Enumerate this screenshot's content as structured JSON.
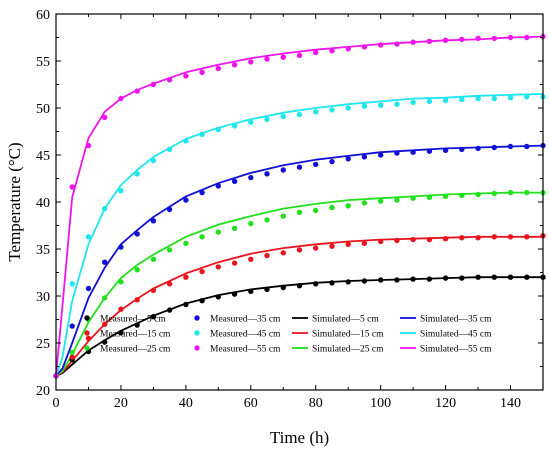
{
  "chart_data": {
    "type": "line",
    "title": "",
    "xlabel": "Time (h)",
    "ylabel": "Temperature (°C)",
    "xlim": [
      0,
      150
    ],
    "ylim": [
      20,
      60
    ],
    "xticks": [
      0,
      20,
      40,
      60,
      80,
      100,
      120,
      140
    ],
    "yticks": [
      20,
      25,
      30,
      35,
      40,
      45,
      50,
      55,
      60
    ],
    "grid": false,
    "legend_position": "bottom-right",
    "colors": {
      "5 cm": "#000000",
      "15 cm": "#e8141d",
      "25 cm": "#21e01c",
      "35 cm": "#1010d8",
      "45 cm": "#1ee6ee",
      "55 cm": "#ee14ee"
    },
    "measured_series": [
      {
        "name": "Measured—5 cm",
        "color": "#000000",
        "x": [
          0,
          5,
          10,
          15,
          20,
          25,
          30,
          35,
          40,
          45,
          50,
          55,
          60,
          65,
          70,
          75,
          80,
          85,
          90,
          95,
          100,
          105,
          110,
          115,
          120,
          125,
          130,
          135,
          140,
          145,
          150
        ],
        "y": [
          21.5,
          23.2,
          24.1,
          25.1,
          26.1,
          26.9,
          27.8,
          28.5,
          29.1,
          29.5,
          29.9,
          30.2,
          30.5,
          30.7,
          30.9,
          31.1,
          31.3,
          31.4,
          31.5,
          31.6,
          31.7,
          31.7,
          31.8,
          31.8,
          31.9,
          31.9,
          32.0,
          32.0,
          32.0,
          32.0,
          32.0
        ]
      },
      {
        "name": "Measured—15 cm",
        "color": "#e8141d",
        "x": [
          0,
          5,
          10,
          15,
          20,
          25,
          30,
          35,
          40,
          45,
          50,
          55,
          60,
          65,
          70,
          75,
          80,
          85,
          90,
          95,
          100,
          105,
          110,
          115,
          120,
          125,
          130,
          135,
          140,
          145,
          150
        ],
        "y": [
          21.5,
          23.5,
          25.5,
          27.0,
          28.6,
          29.6,
          30.6,
          31.3,
          32.0,
          32.6,
          33.1,
          33.5,
          33.9,
          34.3,
          34.6,
          34.9,
          35.1,
          35.3,
          35.5,
          35.6,
          35.8,
          35.9,
          36.0,
          36.0,
          36.1,
          36.2,
          36.2,
          36.3,
          36.3,
          36.3,
          36.4
        ]
      },
      {
        "name": "Measured—25 cm",
        "color": "#21e01c",
        "x": [
          0,
          5,
          10,
          15,
          20,
          25,
          30,
          35,
          40,
          45,
          50,
          55,
          60,
          65,
          70,
          75,
          80,
          85,
          90,
          95,
          100,
          105,
          110,
          115,
          120,
          125,
          130,
          135,
          140,
          145,
          150
        ],
        "y": [
          21.5,
          24.0,
          27.5,
          29.8,
          31.5,
          32.8,
          33.9,
          34.9,
          35.6,
          36.3,
          36.8,
          37.2,
          37.7,
          38.1,
          38.5,
          38.9,
          39.1,
          39.4,
          39.6,
          39.9,
          40.1,
          40.2,
          40.4,
          40.5,
          40.6,
          40.7,
          40.8,
          40.9,
          41.0,
          41.0,
          41.0
        ]
      },
      {
        "name": "Measured—35 cm",
        "color": "#1010d8",
        "x": [
          0,
          5,
          10,
          15,
          20,
          25,
          30,
          35,
          40,
          45,
          50,
          55,
          60,
          65,
          70,
          75,
          80,
          85,
          90,
          95,
          100,
          105,
          110,
          115,
          120,
          125,
          130,
          135,
          140,
          145,
          150
        ],
        "y": [
          21.5,
          26.8,
          30.8,
          33.6,
          35.2,
          36.6,
          38.0,
          39.2,
          40.2,
          41.0,
          41.7,
          42.2,
          42.6,
          43.0,
          43.4,
          43.7,
          44.0,
          44.3,
          44.6,
          44.8,
          45.0,
          45.2,
          45.3,
          45.4,
          45.5,
          45.6,
          45.7,
          45.8,
          45.9,
          45.9,
          46.0
        ]
      },
      {
        "name": "Measured—45 cm",
        "color": "#1ee6ee",
        "x": [
          0,
          5,
          10,
          15,
          20,
          25,
          30,
          35,
          40,
          45,
          50,
          55,
          60,
          65,
          70,
          75,
          80,
          85,
          90,
          95,
          100,
          105,
          110,
          115,
          120,
          125,
          130,
          135,
          140,
          145,
          150
        ],
        "y": [
          21.5,
          31.3,
          36.3,
          39.3,
          41.2,
          43.0,
          44.4,
          45.6,
          46.5,
          47.2,
          47.7,
          48.1,
          48.5,
          48.8,
          49.1,
          49.3,
          49.6,
          49.8,
          50.0,
          50.2,
          50.3,
          50.4,
          50.6,
          50.7,
          50.8,
          50.9,
          51.0,
          51.0,
          51.1,
          51.2,
          51.2
        ]
      },
      {
        "name": "Measured—55 cm",
        "color": "#ee14ee",
        "x": [
          0,
          5,
          10,
          15,
          20,
          25,
          30,
          35,
          40,
          45,
          50,
          55,
          60,
          65,
          70,
          75,
          80,
          85,
          90,
          95,
          100,
          105,
          110,
          115,
          120,
          125,
          130,
          135,
          140,
          145,
          150
        ],
        "y": [
          21.5,
          41.6,
          46.0,
          49.0,
          51.0,
          51.8,
          52.5,
          53.0,
          53.4,
          53.8,
          54.2,
          54.6,
          54.9,
          55.2,
          55.4,
          55.6,
          55.9,
          56.1,
          56.3,
          56.5,
          56.7,
          56.8,
          57.0,
          57.1,
          57.2,
          57.3,
          57.4,
          57.4,
          57.5,
          57.5,
          57.6
        ]
      }
    ],
    "simulated_series": [
      {
        "name": "Simulated—5 cm",
        "color": "#000000",
        "x": [
          0,
          2,
          5,
          10,
          15,
          20,
          25,
          30,
          40,
          50,
          60,
          70,
          80,
          90,
          100,
          110,
          120,
          130,
          140,
          150
        ],
        "y": [
          21.5,
          21.8,
          22.7,
          24.2,
          25.3,
          26.3,
          27.1,
          27.9,
          29.2,
          30.1,
          30.7,
          31.1,
          31.4,
          31.6,
          31.7,
          31.8,
          31.9,
          32.0,
          32.0,
          32.0
        ]
      },
      {
        "name": "Simulated—15 cm",
        "color": "#e8141d",
        "x": [
          0,
          2,
          5,
          10,
          15,
          20,
          25,
          30,
          40,
          50,
          60,
          70,
          80,
          90,
          100,
          110,
          120,
          130,
          140,
          150
        ],
        "y": [
          21.5,
          21.9,
          23.1,
          25.2,
          27.0,
          28.5,
          29.7,
          30.8,
          32.4,
          33.6,
          34.5,
          35.1,
          35.5,
          35.8,
          36.0,
          36.1,
          36.2,
          36.3,
          36.3,
          36.3
        ]
      },
      {
        "name": "Simulated—25 cm",
        "color": "#21e01c",
        "x": [
          0,
          2,
          5,
          10,
          15,
          20,
          25,
          30,
          40,
          50,
          60,
          70,
          80,
          90,
          100,
          110,
          120,
          130,
          140,
          150
        ],
        "y": [
          21.5,
          22.0,
          23.8,
          27.2,
          29.8,
          31.9,
          33.3,
          34.4,
          36.3,
          37.6,
          38.5,
          39.3,
          39.8,
          40.2,
          40.4,
          40.6,
          40.8,
          40.9,
          41.0,
          41.0
        ]
      },
      {
        "name": "Simulated—35 cm",
        "color": "#1010d8",
        "x": [
          0,
          2,
          5,
          10,
          15,
          20,
          25,
          30,
          40,
          50,
          60,
          70,
          80,
          90,
          100,
          110,
          120,
          130,
          140,
          150
        ],
        "y": [
          21.5,
          22.3,
          25.0,
          29.8,
          33.0,
          35.5,
          37.0,
          38.4,
          40.6,
          42.0,
          43.1,
          43.9,
          44.5,
          44.9,
          45.3,
          45.5,
          45.7,
          45.8,
          45.9,
          46.0
        ]
      },
      {
        "name": "Simulated—45 cm",
        "color": "#1ee6ee",
        "x": [
          0,
          2,
          5,
          10,
          15,
          20,
          25,
          30,
          40,
          50,
          60,
          70,
          80,
          90,
          100,
          110,
          120,
          130,
          140,
          150
        ],
        "y": [
          21.5,
          23.5,
          29.5,
          35.5,
          39.3,
          41.8,
          43.4,
          44.8,
          46.7,
          47.9,
          48.8,
          49.5,
          50.0,
          50.4,
          50.7,
          51.0,
          51.1,
          51.3,
          51.4,
          51.5
        ]
      },
      {
        "name": "Simulated—55 cm",
        "color": "#ee14ee",
        "x": [
          0,
          2,
          5,
          10,
          15,
          20,
          25,
          30,
          40,
          50,
          60,
          70,
          80,
          90,
          100,
          110,
          120,
          130,
          140,
          150
        ],
        "y": [
          21.5,
          29.0,
          40.5,
          46.8,
          49.6,
          51.0,
          51.9,
          52.6,
          53.8,
          54.6,
          55.3,
          55.8,
          56.2,
          56.5,
          56.8,
          57.0,
          57.2,
          57.3,
          57.5,
          57.6
        ]
      }
    ],
    "legend": [
      {
        "label": "Measured—5 cm",
        "kind": "marker",
        "color": "#000000"
      },
      {
        "label": "Measured—35 cm",
        "kind": "marker",
        "color": "#1010d8"
      },
      {
        "label": "Simulated—5 cm",
        "kind": "line",
        "color": "#000000"
      },
      {
        "label": "Simulated—35 cm",
        "kind": "line",
        "color": "#1010d8"
      },
      {
        "label": "Measured—15 cm",
        "kind": "marker",
        "color": "#e8141d"
      },
      {
        "label": "Measured—45 cm",
        "kind": "marker",
        "color": "#1ee6ee"
      },
      {
        "label": "Simulated—15 cm",
        "kind": "line",
        "color": "#e8141d"
      },
      {
        "label": "Simulated—45 cm",
        "kind": "line",
        "color": "#1ee6ee"
      },
      {
        "label": "Measured—25 cm",
        "kind": "marker",
        "color": "#21e01c"
      },
      {
        "label": "Measured—55 cm",
        "kind": "marker",
        "color": "#ee14ee"
      },
      {
        "label": "Simulated—25 cm",
        "kind": "line",
        "color": "#21e01c"
      },
      {
        "label": "Simulated—55 cm",
        "kind": "line",
        "color": "#ee14ee"
      }
    ]
  }
}
